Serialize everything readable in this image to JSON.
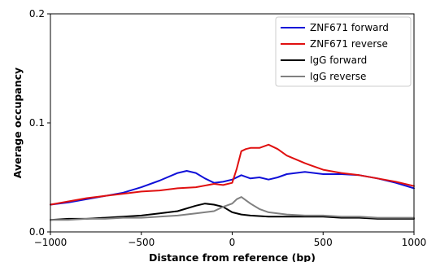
{
  "chart_data": {
    "type": "line",
    "title": "",
    "xlabel": "Distance from reference (bp)",
    "ylabel": "Average occupancy",
    "xlim": [
      -1000,
      1000
    ],
    "ylim": [
      0,
      0.2
    ],
    "xticks": [
      -1000,
      -500,
      0,
      500,
      1000
    ],
    "xtick_labels": [
      "−1000",
      "−500",
      "0",
      "500",
      "1000"
    ],
    "yticks": [
      0,
      0.1,
      0.2
    ],
    "ytick_labels": [
      "0.0",
      "0.1",
      "0.2"
    ],
    "grid": false,
    "legend_position": "top-right",
    "series": [
      {
        "name": "ZNF671 forward",
        "color": "#1010d8",
        "x": [
          -1000,
          -900,
          -800,
          -700,
          -600,
          -500,
          -400,
          -300,
          -250,
          -200,
          -150,
          -100,
          -50,
          0,
          50,
          100,
          150,
          200,
          250,
          300,
          350,
          400,
          500,
          600,
          700,
          800,
          900,
          1000
        ],
        "y": [
          0.025,
          0.027,
          0.03,
          0.033,
          0.036,
          0.041,
          0.047,
          0.054,
          0.056,
          0.054,
          0.049,
          0.045,
          0.046,
          0.048,
          0.052,
          0.049,
          0.05,
          0.048,
          0.05,
          0.053,
          0.054,
          0.055,
          0.053,
          0.053,
          0.052,
          0.049,
          0.045,
          0.04
        ]
      },
      {
        "name": "ZNF671 reverse",
        "color": "#e01010",
        "x": [
          -1000,
          -900,
          -800,
          -700,
          -600,
          -500,
          -400,
          -300,
          -200,
          -100,
          -50,
          0,
          25,
          50,
          75,
          100,
          150,
          200,
          250,
          300,
          400,
          500,
          600,
          700,
          800,
          900,
          1000
        ],
        "y": [
          0.025,
          0.028,
          0.031,
          0.033,
          0.035,
          0.037,
          0.038,
          0.04,
          0.041,
          0.044,
          0.043,
          0.045,
          0.058,
          0.074,
          0.076,
          0.077,
          0.077,
          0.08,
          0.076,
          0.07,
          0.063,
          0.057,
          0.054,
          0.052,
          0.049,
          0.046,
          0.042
        ]
      },
      {
        "name": "IgG forward",
        "color": "#000000",
        "x": [
          -1000,
          -900,
          -800,
          -700,
          -600,
          -500,
          -400,
          -300,
          -200,
          -150,
          -100,
          -50,
          0,
          50,
          100,
          200,
          300,
          400,
          500,
          600,
          700,
          800,
          900,
          1000
        ],
        "y": [
          0.011,
          0.012,
          0.012,
          0.013,
          0.014,
          0.015,
          0.017,
          0.019,
          0.024,
          0.026,
          0.025,
          0.023,
          0.018,
          0.016,
          0.015,
          0.014,
          0.014,
          0.014,
          0.014,
          0.013,
          0.013,
          0.012,
          0.012,
          0.012
        ]
      },
      {
        "name": "IgG reverse",
        "color": "#808080",
        "x": [
          -1000,
          -900,
          -800,
          -700,
          -600,
          -500,
          -400,
          -300,
          -200,
          -100,
          -50,
          0,
          25,
          50,
          100,
          150,
          200,
          300,
          400,
          500,
          600,
          700,
          800,
          900,
          1000
        ],
        "y": [
          0.011,
          0.011,
          0.012,
          0.012,
          0.013,
          0.013,
          0.014,
          0.015,
          0.017,
          0.019,
          0.023,
          0.026,
          0.03,
          0.032,
          0.026,
          0.021,
          0.018,
          0.016,
          0.015,
          0.015,
          0.014,
          0.014,
          0.013,
          0.013,
          0.013
        ]
      }
    ]
  }
}
